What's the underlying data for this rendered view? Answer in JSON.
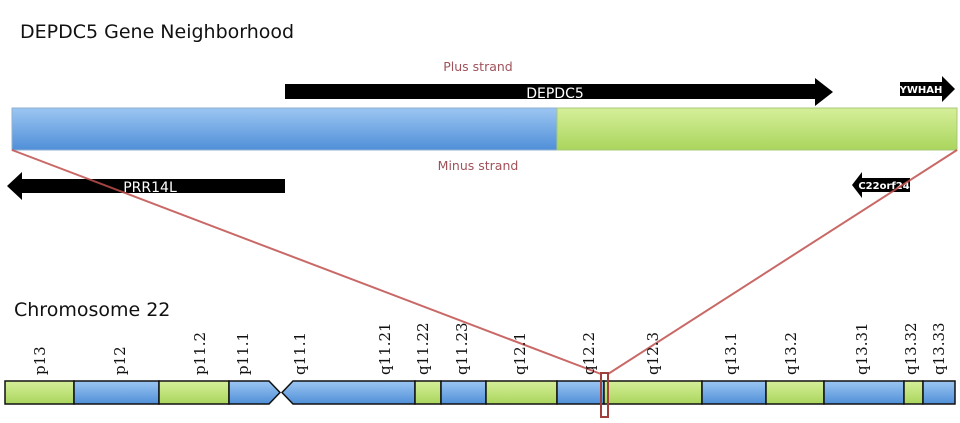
{
  "title": "DEPDC5 Gene Neighborhood",
  "plus_strand_label": "Plus strand",
  "minus_strand_label": "Minus strand",
  "genes": {
    "depdc5": "DEPDC5",
    "ywhah": "YWHAH",
    "prr14l": "PRR14L",
    "c22orf24": "C22orf24"
  },
  "chromosome_label": "Chromosome 22",
  "bands": [
    "p13",
    "p12",
    "p11.2",
    "p11.1",
    "q11.1",
    "q11.21",
    "q11.22",
    "q11.23",
    "q12.1",
    "q12.2",
    "q12.3",
    "q13.1",
    "q13.2",
    "q13.31",
    "q13.32",
    "q13.33"
  ],
  "colors": {
    "blue": "#5b9bd5",
    "green": "#c4e07a",
    "highlight_line": "#c0504d",
    "arrow": "#000000"
  }
}
